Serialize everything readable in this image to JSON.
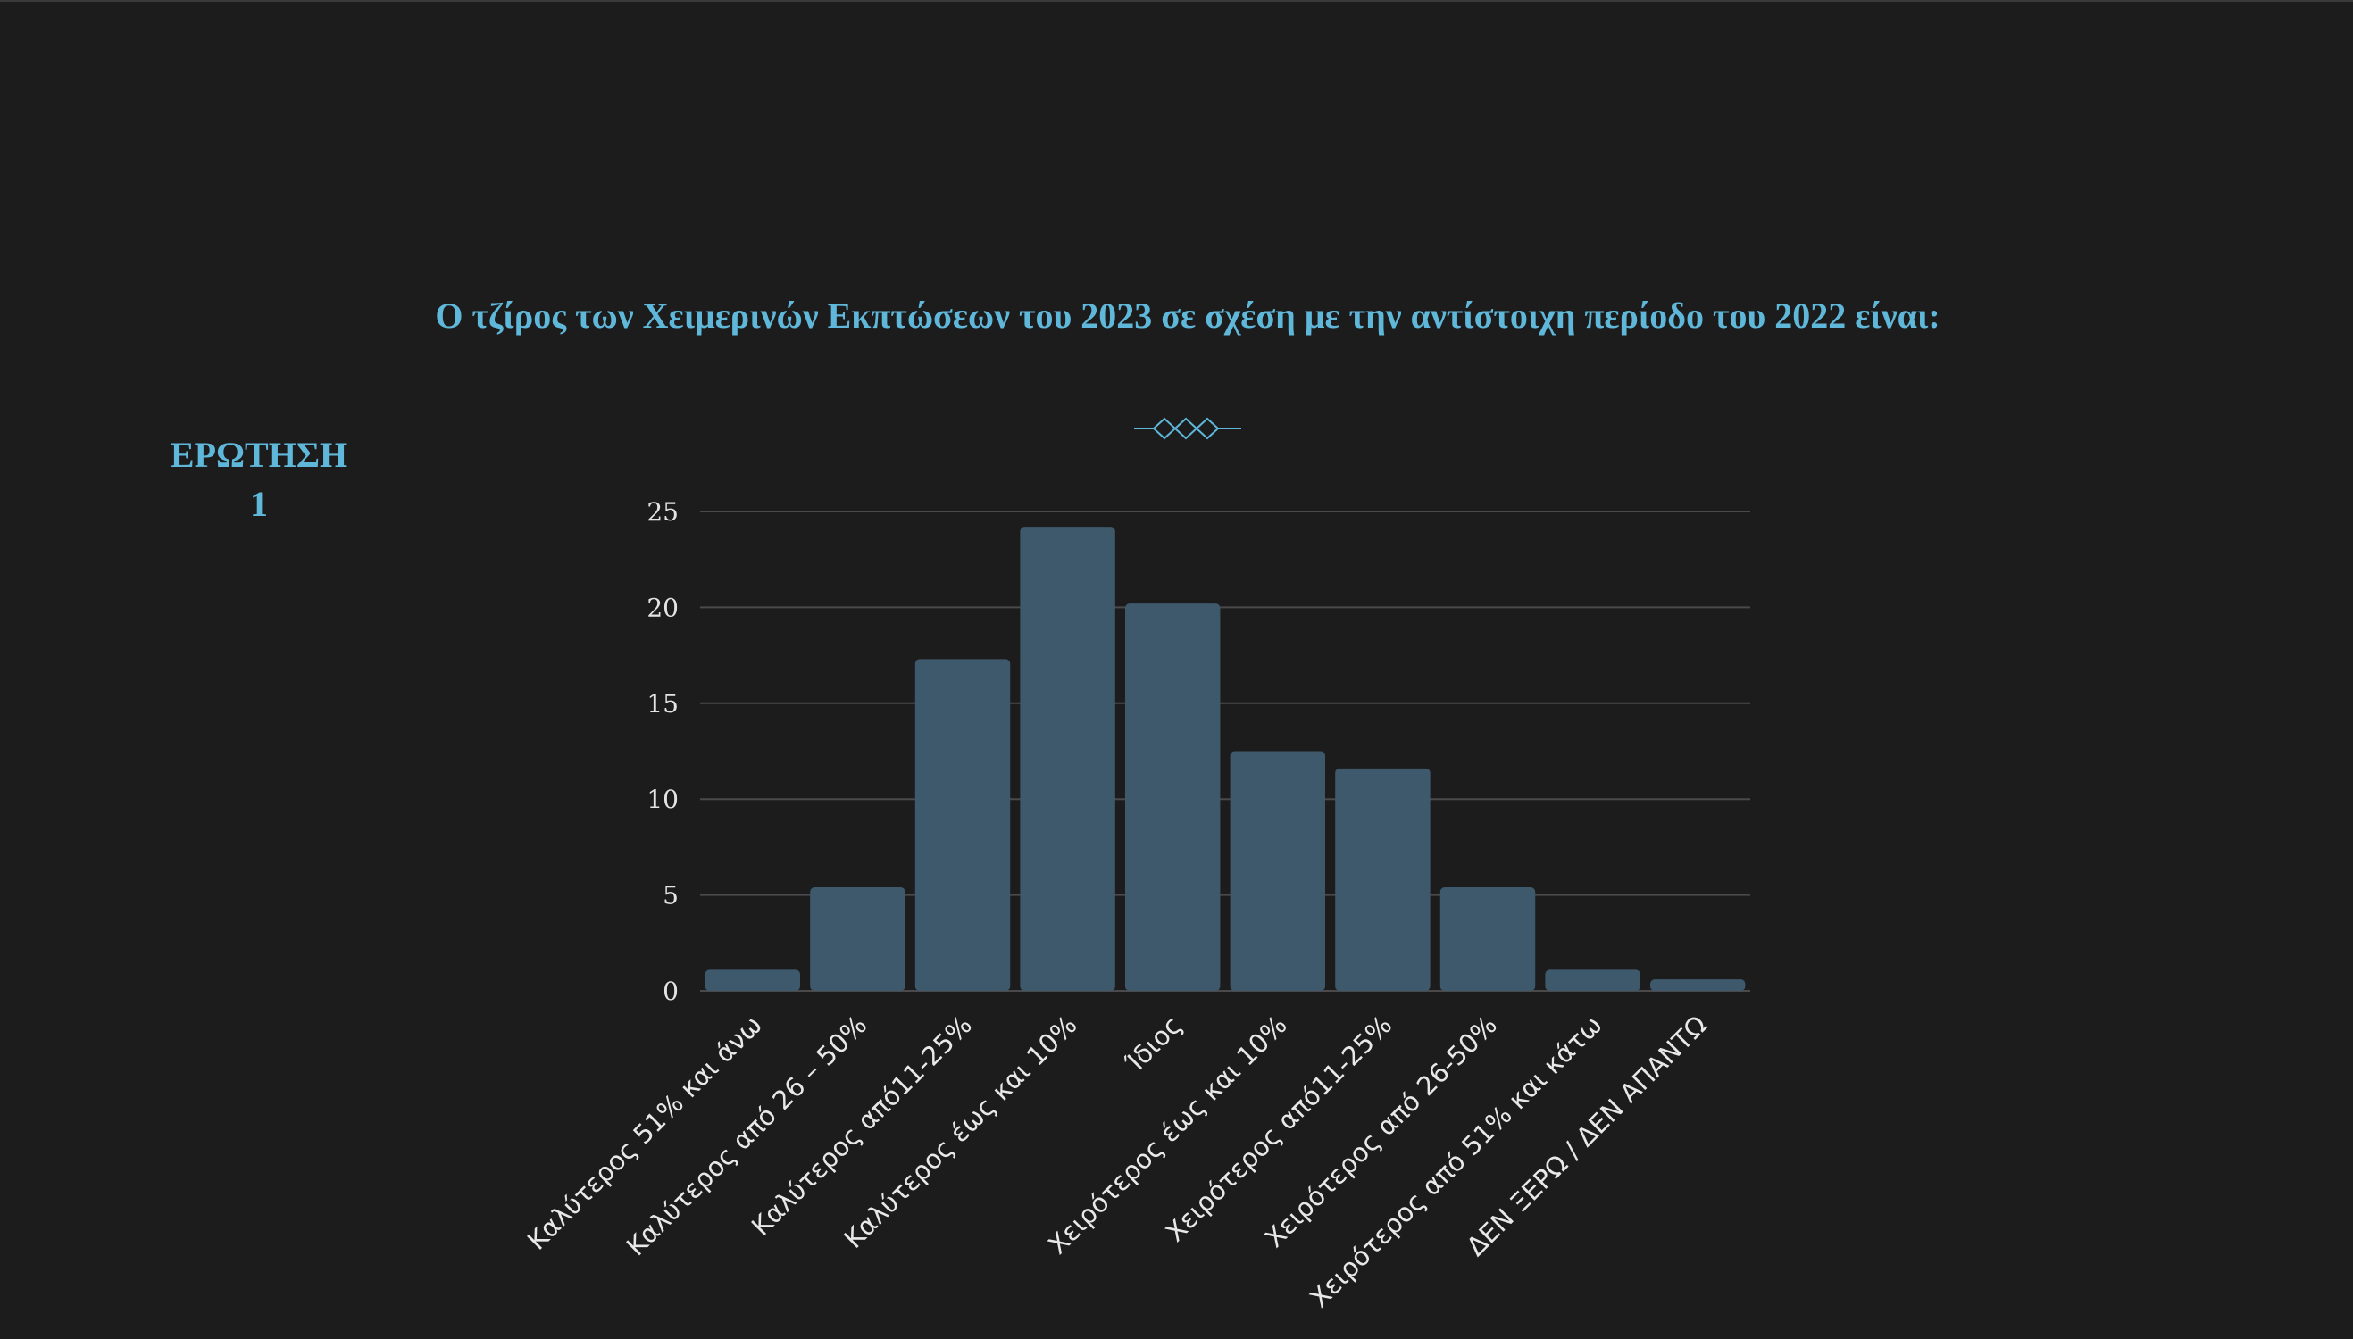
{
  "slide": {
    "title": "Ο τζίρος των Χειμερινών Εκπτώσεων του 2023 σε σχέση με την αντίστοιχη περίοδο του 2022 είναι:",
    "question_label_line1": "ΕΡΩΤΗΣΗ",
    "question_label_line2": "1"
  },
  "colors": {
    "background": "#1c1c1d",
    "accent": "#5fb7d9",
    "bar": "#3f596c",
    "grid": "#4a4a4c"
  },
  "chart_data": {
    "type": "bar",
    "title": "",
    "xlabel": "",
    "ylabel": "",
    "ylim": [
      0,
      25
    ],
    "yticks": [
      0,
      5,
      10,
      15,
      20,
      25
    ],
    "grid": true,
    "categories": [
      "Καλύτερος 51% και άνω",
      "Καλύτερος από 26 – 50%",
      "Καλύτερος από11-25%",
      "Καλύτερος έως και 10%",
      "Ίδιος",
      "Χειρότερος έως και 10%",
      "Χειρότερος από11-25%",
      "Χειρότερος από 26-50%",
      "Χειρότερος από 51% και κάτω",
      "ΔΕΝ ΞΕΡΩ / ΔΕΝ ΑΠΑΝΤΩ"
    ],
    "values": [
      1.1,
      5.4,
      17.3,
      24.2,
      20.2,
      12.5,
      11.6,
      5.4,
      1.1,
      0.6
    ]
  }
}
